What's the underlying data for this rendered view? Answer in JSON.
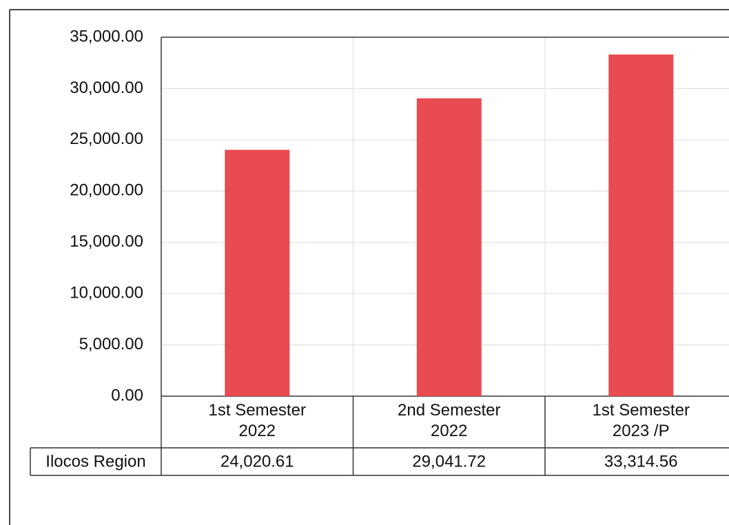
{
  "chart_data": {
    "type": "bar",
    "categories": [
      "1st Semester 2022",
      "2nd Semester 2022",
      "1st Semester 2023 /P"
    ],
    "series": [
      {
        "name": "Ilocos Region",
        "color": "#e84b50",
        "values": [
          24020.61,
          29041.72,
          33314.56
        ],
        "value_labels": [
          "24,020.61",
          "29,041.72",
          "33,314.56"
        ]
      }
    ],
    "ylim": [
      0,
      35000
    ],
    "yticks": [
      {
        "value": 0,
        "label": "0.00"
      },
      {
        "value": 5000,
        "label": "5,000.00"
      },
      {
        "value": 10000,
        "label": "10,000.00"
      },
      {
        "value": 15000,
        "label": "15,000.00"
      },
      {
        "value": 20000,
        "label": "20,000.00"
      },
      {
        "value": 25000,
        "label": "25,000.00"
      },
      {
        "value": 30000,
        "label": "30,000.00"
      },
      {
        "value": 35000,
        "label": "35,000.00"
      }
    ],
    "grid": true
  }
}
